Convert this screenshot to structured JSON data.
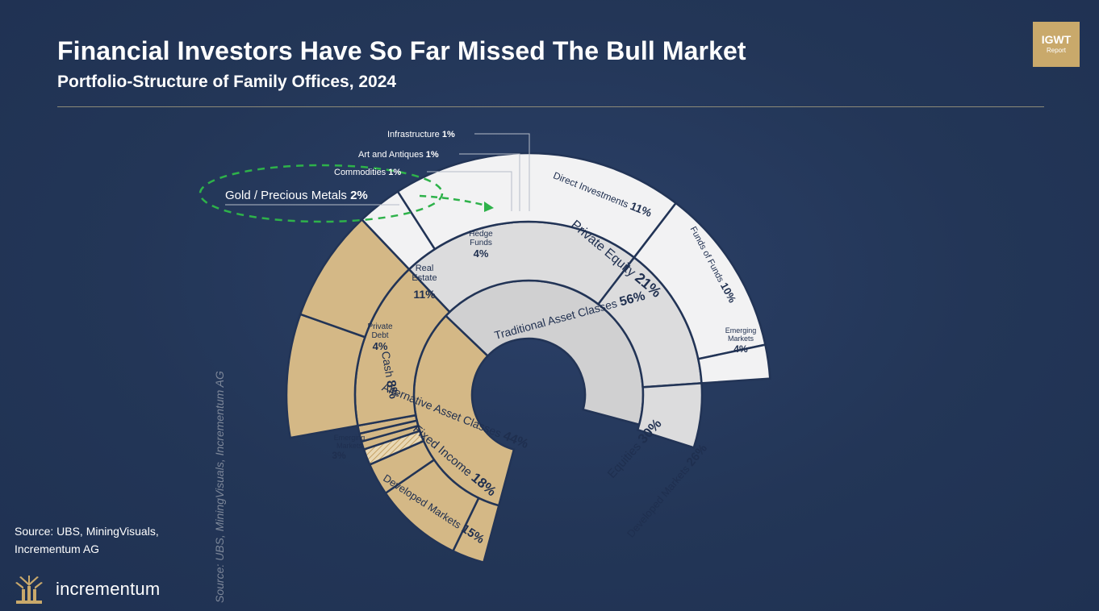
{
  "header": {
    "title": "Financial Investors Have So Far Missed The Bull Market",
    "subtitle": "Portfolio-Structure of Family Offices, 2024",
    "badge_main": "IGWT",
    "badge_sub": "Report"
  },
  "footer": {
    "source": "Source: UBS, MiningVisuals, Incrementum AG",
    "brand": "incrementum",
    "vertical_source": "Source: UBS, MiningVisuals, Incrementum AG"
  },
  "colors": {
    "background": "#233657",
    "alternative": "#d4b886",
    "traditional_inner": "#d0d0d1",
    "traditional_mid": "#dcdcdd",
    "traditional_outer": "#f2f2f3",
    "gold_highlight": "#2eb24a",
    "accent": "#c9a96b"
  },
  "chart_data": {
    "type": "sunburst",
    "title": "Portfolio-Structure of Family Offices, 2024",
    "unit": "%",
    "rings": {
      "inner": [
        {
          "label": "Alternative Asset Classes",
          "value": 44
        },
        {
          "label": "Traditional Asset Classes",
          "value": 56
        }
      ],
      "middle": [
        {
          "label": "Private Equity",
          "value": 21,
          "parent": "Alternative Asset Classes"
        },
        {
          "label": "Infrastructure",
          "value": 1,
          "parent": "Alternative Asset Classes"
        },
        {
          "label": "Art and Antiques",
          "value": 1,
          "parent": "Alternative Asset Classes"
        },
        {
          "label": "Commodities",
          "value": 1,
          "parent": "Alternative Asset Classes"
        },
        {
          "label": "Gold / Precious Metals",
          "value": 2,
          "parent": "Alternative Asset Classes",
          "highlight": true
        },
        {
          "label": "Hedge Funds",
          "value": 4,
          "parent": "Alternative Asset Classes"
        },
        {
          "label": "Real Estate",
          "value": 11,
          "parent": "Alternative Asset Classes"
        },
        {
          "label": "Private Debt",
          "value": 4,
          "parent": "Alternative Asset Classes"
        },
        {
          "label": "Cash",
          "value": 8,
          "parent": "Traditional Asset Classes"
        },
        {
          "label": "Fixed Income",
          "value": 18,
          "parent": "Traditional Asset Classes"
        },
        {
          "label": "Equities",
          "value": 30,
          "parent": "Traditional Asset Classes"
        }
      ],
      "outer": [
        {
          "label": "Direct Investments",
          "value": 11,
          "parent": "Private Equity"
        },
        {
          "label": "Funds of Funds",
          "value": 10,
          "parent": "Private Equity"
        },
        {
          "label": "Emerging Markets",
          "value": 4,
          "parent": "Equities"
        },
        {
          "label": "Developed Markets",
          "value": 26,
          "parent": "Equities"
        },
        {
          "label": "Developed Markets",
          "value": 15,
          "parent": "Fixed Income"
        },
        {
          "label": "Emerging Markets",
          "value": 3,
          "parent": "Fixed Income"
        }
      ]
    }
  }
}
